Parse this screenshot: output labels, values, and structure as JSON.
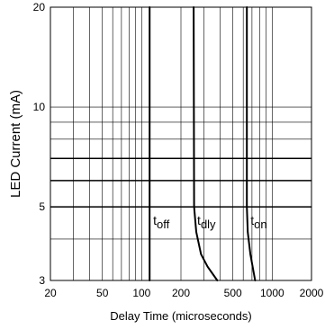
{
  "chart_data": {
    "type": "line",
    "title": "",
    "xlabel": "Delay Time (microseconds)",
    "ylabel": "LED Current (mA)",
    "x_scale": "log",
    "y_scale": "log",
    "xlim": [
      20,
      2000
    ],
    "ylim": [
      3,
      20
    ],
    "x_ticks": [
      20,
      50,
      100,
      200,
      500,
      1000,
      2000
    ],
    "x_tick_labels": [
      "20",
      "50",
      "100",
      "200",
      "500",
      "1000",
      "2000"
    ],
    "y_ticks": [
      3,
      5,
      10,
      20
    ],
    "y_tick_labels": [
      "3",
      "5",
      "10",
      "20"
    ],
    "x_grid": [
      30,
      40,
      50,
      60,
      70,
      80,
      90,
      100,
      200,
      300,
      400,
      500,
      600,
      700,
      800,
      900,
      1000
    ],
    "y_grid": [
      4,
      5,
      6,
      7,
      8,
      9,
      10
    ],
    "grid": true,
    "series": [
      {
        "name": "t",
        "subscript": "off",
        "x": [
          115,
          115
        ],
        "y": [
          20,
          3
        ],
        "color": "#000000"
      },
      {
        "name": "t",
        "subscript": "dly",
        "x": [
          250,
          252,
          262,
          285,
          320,
          380
        ],
        "y": [
          20,
          5,
          4.2,
          3.6,
          3.3,
          3.0
        ],
        "color": "#000000"
      },
      {
        "name": "t",
        "subscript": "on",
        "x": [
          640,
          640,
          650,
          680,
          740
        ],
        "y": [
          20,
          5,
          4.2,
          3.6,
          3.0
        ],
        "color": "#000000"
      }
    ]
  }
}
